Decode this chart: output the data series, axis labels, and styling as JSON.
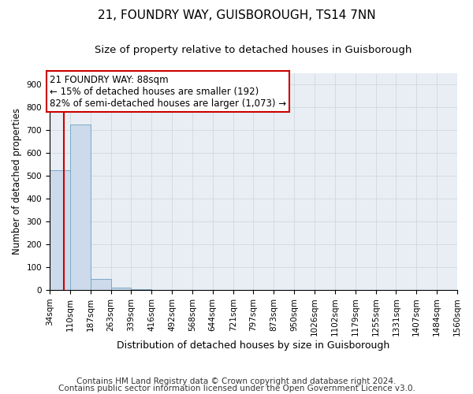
{
  "title": "21, FOUNDRY WAY, GUISBOROUGH, TS14 7NN",
  "subtitle": "Size of property relative to detached houses in Guisborough",
  "xlabel": "Distribution of detached houses by size in Guisborough",
  "ylabel": "Number of detached properties",
  "footnote1": "Contains HM Land Registry data © Crown copyright and database right 2024.",
  "footnote2": "Contains public sector information licensed under the Open Government Licence v3.0.",
  "bin_edges": [
    34,
    110,
    187,
    263,
    339,
    416,
    492,
    568,
    644,
    721,
    797,
    873,
    950,
    1026,
    1102,
    1179,
    1255,
    1331,
    1407,
    1484,
    1560
  ],
  "bar_heights": [
    525,
    725,
    47,
    10,
    4,
    0,
    0,
    0,
    0,
    0,
    0,
    0,
    0,
    0,
    0,
    0,
    0,
    0,
    0,
    0
  ],
  "bar_color": "#ccdaeb",
  "bar_edgecolor": "#7aa8c8",
  "grid_color": "#d0d8e0",
  "bg_color": "#e8eef4",
  "property_size": 88,
  "property_label": "21 FOUNDRY WAY: 88sqm",
  "annotation_line1": "← 15% of detached houses are smaller (192)",
  "annotation_line2": "82% of semi-detached houses are larger (1,073) →",
  "vline_color": "#cc0000",
  "annotation_box_edgecolor": "#cc0000",
  "ylim": [
    0,
    950
  ],
  "yticks": [
    0,
    100,
    200,
    300,
    400,
    500,
    600,
    700,
    800,
    900
  ],
  "title_fontsize": 11,
  "subtitle_fontsize": 9.5,
  "xlabel_fontsize": 9,
  "ylabel_fontsize": 8.5,
  "tick_fontsize": 7.5,
  "annotation_fontsize": 8.5,
  "footnote_fontsize": 7.5
}
